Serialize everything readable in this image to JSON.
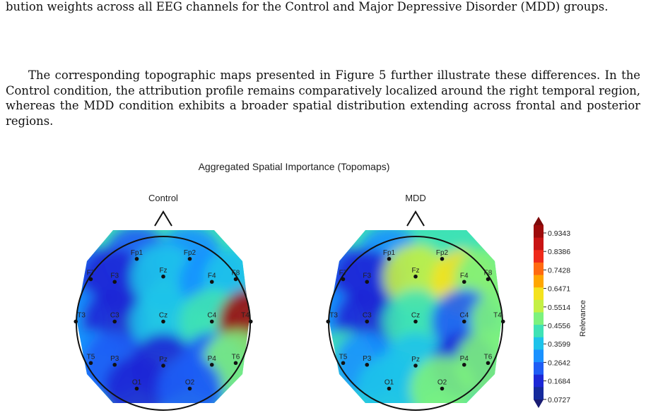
{
  "paragraphs": [
    "bution weights across all EEG channels for the Control and Major Depressive Disorder (MDD) groups.",
    "The corresponding topographic maps presented in Figure 5 further illustrate these differences. In the Control condition, the attribution profile remains comparatively localized around the right temporal region, whereas the MDD condition exhibits a broader spatial distribution extending across frontal and posterior regions."
  ],
  "figure": {
    "title": "Aggregated Spatial Importance (Topomaps)",
    "panels": [
      {
        "title": "Control",
        "relevance": {
          "Fp1": 0.22,
          "Fp2": 0.3,
          "F7": 0.22,
          "F3": 0.12,
          "Fz": 0.35,
          "F4": 0.3,
          "F8": 0.35,
          "T3": 0.28,
          "C3": 0.12,
          "Cz": 0.33,
          "C4": 0.4,
          "T4": 0.93,
          "T5": 0.3,
          "P3": 0.17,
          "Pz": 0.15,
          "P4": 0.17,
          "T6": 0.5,
          "O1": 0.12,
          "O2": 0.2
        }
      },
      {
        "title": "MDD",
        "relevance": {
          "Fp1": 0.3,
          "Fp2": 0.42,
          "F7": 0.2,
          "F3": 0.15,
          "Fz": 0.55,
          "F4": 0.6,
          "F8": 0.45,
          "T3": 0.28,
          "C3": 0.13,
          "Cz": 0.37,
          "C4": 0.18,
          "T4": 0.5,
          "T5": 0.38,
          "P3": 0.28,
          "Pz": 0.35,
          "P4": 0.12,
          "T6": 0.5,
          "O1": 0.35,
          "O2": 0.45
        }
      }
    ],
    "channels": [
      "Fp1",
      "Fp2",
      "F7",
      "F3",
      "Fz",
      "F4",
      "F8",
      "T3",
      "C3",
      "Cz",
      "C4",
      "T4",
      "T5",
      "P3",
      "Pz",
      "P4",
      "T6",
      "O1",
      "O2"
    ],
    "colorbar": {
      "label": "Relevance",
      "ticks": [
        "0.9343",
        "0.8386",
        "0.7428",
        "0.6471",
        "0.5514",
        "0.4556",
        "0.3599",
        "0.2642",
        "0.1684",
        "0.0727"
      ],
      "colors": [
        "#9e0b0b",
        "#c81414",
        "#ef2a1a",
        "#ff6a10",
        "#ffa600",
        "#f4e21e",
        "#c4f045",
        "#7cf27e",
        "#3fe2b5",
        "#1ec3ea",
        "#1a91ff",
        "#1f5df5",
        "#1c28d6",
        "#152a9c"
      ]
    }
  }
}
